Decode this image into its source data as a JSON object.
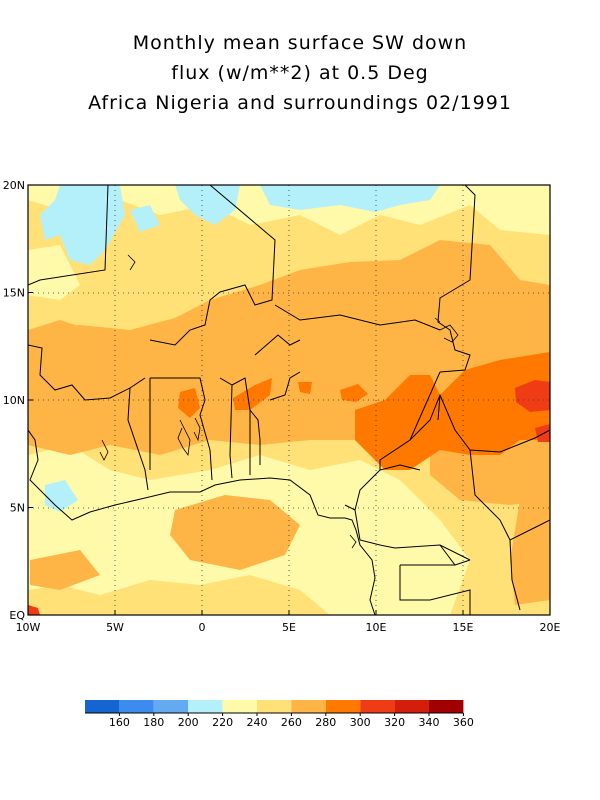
{
  "title": {
    "line1": "Monthly mean surface SW down",
    "line2": "flux (w/m**2) at 0.5 Deg",
    "line3": "Africa Nigeria and surroundings 02/1991"
  },
  "map": {
    "lon_range": [
      -10,
      20
    ],
    "lat_range": [
      0,
      20
    ],
    "x_tick_labels": [
      "10W",
      "5W",
      "0",
      "5E",
      "10E",
      "15E",
      "20E"
    ],
    "y_tick_labels": [
      "EQ",
      "5N",
      "10N",
      "15N",
      "20N"
    ],
    "grid": "dotted"
  },
  "colorbar": {
    "labels": [
      "160",
      "180",
      "200",
      "220",
      "240",
      "260",
      "280",
      "300",
      "320",
      "340",
      "360"
    ],
    "colors": [
      "#1464d2",
      "#3c8cf0",
      "#64aaf0",
      "#b4f0fa",
      "#fffaaa",
      "#ffe178",
      "#ffb446",
      "#ff7800",
      "#f03c14",
      "#d21e0a",
      "#a00000"
    ]
  }
}
